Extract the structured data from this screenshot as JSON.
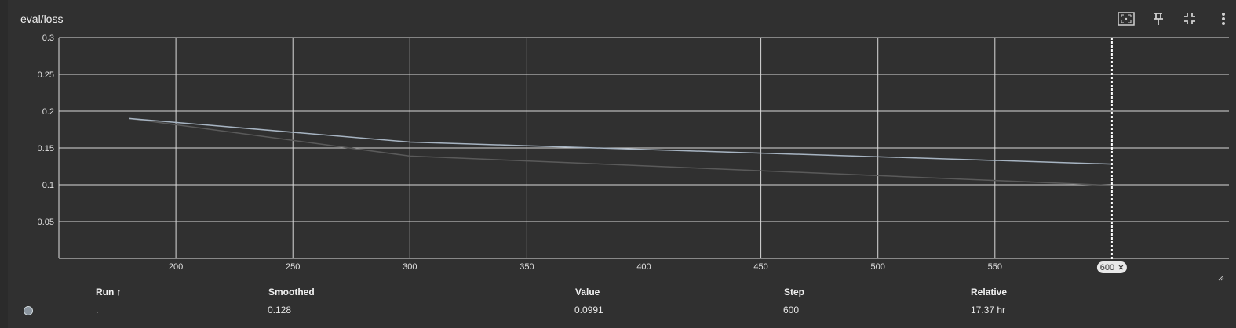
{
  "card": {
    "title": "eval/loss"
  },
  "toolbar": {
    "icons": [
      "fit-domain-icon",
      "pin-icon",
      "collapse-icon",
      "more-vert-icon"
    ]
  },
  "chart_data": {
    "type": "line",
    "title": "eval/loss",
    "xlabel": "",
    "ylabel": "",
    "xlim": [
      150,
      650
    ],
    "ylim": [
      0,
      0.3
    ],
    "xticks": [
      "200",
      "250",
      "300",
      "350",
      "400",
      "450",
      "500",
      "550"
    ],
    "yticks": [
      "0.3",
      "0.25",
      "0.2",
      "0.15",
      "0.1",
      "0.05"
    ],
    "grid": true,
    "cursor_step": "600",
    "series": [
      {
        "kind": "smoothed",
        "color": "#a7b4c2",
        "x": [
          180,
          300,
          600
        ],
        "y": [
          0.19,
          0.158,
          0.128
        ]
      },
      {
        "kind": "raw",
        "color": "#5a5a5a",
        "x": [
          180,
          300,
          600
        ],
        "y": [
          0.19,
          0.139,
          0.0991
        ]
      }
    ]
  },
  "table": {
    "headers": {
      "run": "Run ↑",
      "smoothed": "Smoothed",
      "value": "Value",
      "step": "Step",
      "relative": "Relative"
    },
    "rows": [
      {
        "color": "#8a949e",
        "run": ".",
        "smoothed": "0.128",
        "value": "0.0991",
        "step": "600",
        "relative": "17.37 hr"
      }
    ]
  }
}
